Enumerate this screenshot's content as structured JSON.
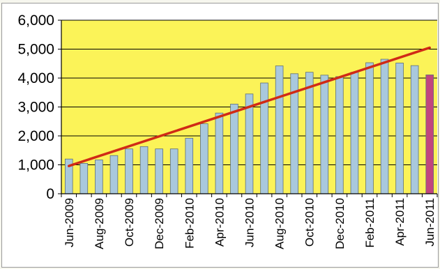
{
  "chart_data": {
    "type": "bar",
    "title": "",
    "xlabel": "",
    "ylabel": "",
    "ylim": [
      0,
      6000
    ],
    "yticks": [
      "0",
      "1,000",
      "2,000",
      "3,000",
      "4,000",
      "5,000",
      "6,000"
    ],
    "ytick_values": [
      0,
      1000,
      2000,
      3000,
      4000,
      5000,
      6000
    ],
    "categories": [
      "Jun-2009",
      "Jul-2009",
      "Aug-2009",
      "Sep-2009",
      "Oct-2009",
      "Nov-2009",
      "Dec-2009",
      "Jan-2010",
      "Feb-2010",
      "Mar-2010",
      "Apr-2010",
      "May-2010",
      "Jun-2010",
      "Jul-2010",
      "Aug-2010",
      "Sep-2010",
      "Oct-2010",
      "Nov-2010",
      "Dec-2010",
      "Jan-2011",
      "Feb-2011",
      "Mar-2011",
      "Apr-2011",
      "May-2011",
      "Jun-2011"
    ],
    "xtick_labels": [
      "Jun-2009",
      "Aug-2009",
      "Oct-2009",
      "Dec-2009",
      "Feb-2010",
      "Apr-2010",
      "Jun-2010",
      "Aug-2010",
      "Oct-2010",
      "Dec-2010",
      "Feb-2011",
      "Apr-2011",
      "Jun-2011"
    ],
    "series": [
      {
        "values": [
          1200,
          1050,
          1170,
          1320,
          1550,
          1630,
          1550,
          1550,
          1920,
          2420,
          2790,
          3100,
          3450,
          3830,
          4420,
          4150,
          4200,
          4100,
          4050,
          4200,
          4530,
          4650,
          4520,
          4430,
          4110
        ]
      }
    ],
    "highlight_index": 24,
    "trendline": {
      "x_start": "Jun-2009",
      "y_start": 960,
      "x_end": "Jun-2011",
      "y_end": 5050
    },
    "grid": true,
    "legend": "none",
    "colors": {
      "bar": "#a9c8dd",
      "highlight_bar": "#c2457e",
      "trend": "#d02a16",
      "plot_bg": "#fbf358",
      "grid": "#000000"
    }
  }
}
